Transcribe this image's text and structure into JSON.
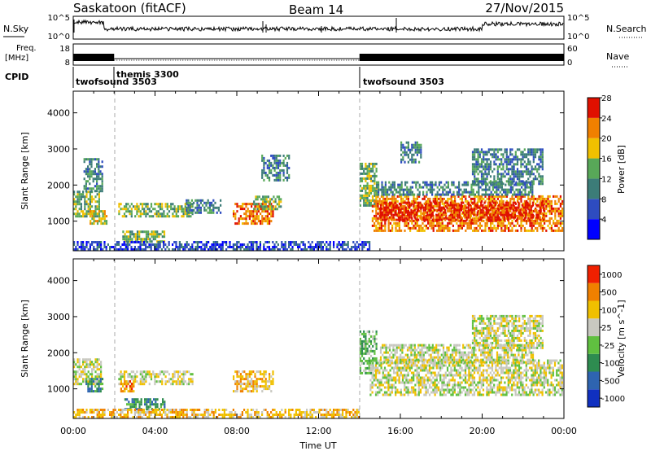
{
  "header": {
    "site": "Saskatoon (fitACF)",
    "beam": "Beam 14",
    "date": "27/Nov/2015"
  },
  "strips": {
    "nsky_label": "N.Sky",
    "nsearch_label": "N.Search",
    "nsky_ticks": [
      "10^5",
      "10^0"
    ],
    "nsearch_ticks": [
      "10^5",
      "10^0"
    ],
    "freq_label": "Freq.",
    "freq_unit": "[MHz]",
    "freq_ticks": [
      "18",
      "8"
    ],
    "nave_label": "Nave",
    "nave_ticks": [
      "60",
      "0"
    ],
    "cpid_label": "CPID"
  },
  "cpid_segments": [
    {
      "name": "twofsound 3503",
      "start_h": 0.0
    },
    {
      "name": "themis 3300",
      "start_h": 2.0
    },
    {
      "name": "twofsound 3503",
      "start_h": 14.0
    }
  ],
  "time_axis": {
    "label": "Time UT",
    "ticks": [
      "00:00",
      "04:00",
      "08:00",
      "12:00",
      "16:00",
      "20:00",
      "00:00"
    ],
    "range_h": [
      0,
      24
    ]
  },
  "chart_data": [
    {
      "type": "heatmap",
      "ylabel": "Slant Range [km]",
      "yticks": [
        1000,
        2000,
        3000,
        4000
      ],
      "ylim": [
        180,
        4600
      ],
      "colorbar_label": "Power [dB]",
      "colorbar_ticks": [
        "4",
        "8",
        "12",
        "16",
        "20",
        "24",
        "28"
      ],
      "colorbar_colors": [
        "#0000ff",
        "#2e4cc0",
        "#3c7c78",
        "#58a858",
        "#f0c000",
        "#f08000",
        "#e01000"
      ],
      "regions": [
        {
          "x0": 0.0,
          "x1": 1.3,
          "y0": 1100,
          "y1": 1800,
          "lvl": 3
        },
        {
          "x0": 0.8,
          "x1": 1.6,
          "y0": 900,
          "y1": 1300,
          "lvl": 4
        },
        {
          "x0": 0.5,
          "x1": 1.4,
          "y0": 1800,
          "y1": 2700,
          "lvl": 2
        },
        {
          "x0": 2.2,
          "x1": 5.8,
          "y0": 1100,
          "y1": 1500,
          "lvl": 3
        },
        {
          "x0": 2.4,
          "x1": 4.5,
          "y0": 400,
          "y1": 700,
          "lvl": 3
        },
        {
          "x0": 5.5,
          "x1": 7.2,
          "y0": 1200,
          "y1": 1600,
          "lvl": 2
        },
        {
          "x0": 7.8,
          "x1": 9.8,
          "y0": 900,
          "y1": 1500,
          "lvl": 5
        },
        {
          "x0": 8.8,
          "x1": 10.2,
          "y0": 1300,
          "y1": 1700,
          "lvl": 3
        },
        {
          "x0": 9.2,
          "x1": 10.6,
          "y0": 2100,
          "y1": 2800,
          "lvl": 2
        },
        {
          "x0": 14.0,
          "x1": 14.8,
          "y0": 1400,
          "y1": 2600,
          "lvl": 3
        },
        {
          "x0": 14.6,
          "x1": 23.9,
          "y0": 700,
          "y1": 1700,
          "lvl": 5
        },
        {
          "x0": 15.0,
          "x1": 23.0,
          "y0": 1000,
          "y1": 1500,
          "lvl": 6
        },
        {
          "x0": 14.8,
          "x1": 22.5,
          "y0": 1700,
          "y1": 2100,
          "lvl": 2
        },
        {
          "x0": 16.0,
          "x1": 17.0,
          "y0": 2600,
          "y1": 3200,
          "lvl": 2
        },
        {
          "x0": 19.5,
          "x1": 23.0,
          "y0": 2000,
          "y1": 3000,
          "lvl": 2
        },
        {
          "x0": 0.0,
          "x1": 14.5,
          "y0": 180,
          "y1": 450,
          "lvl": 1
        }
      ]
    },
    {
      "type": "heatmap",
      "ylabel": "Slant Range [km]",
      "yticks": [
        1000,
        2000,
        3000,
        4000
      ],
      "ylim": [
        180,
        4600
      ],
      "colorbar_label": "Velocity [m s^-1]",
      "colorbar_ticks": [
        "1000",
        "500",
        "100",
        "25",
        "-25",
        "-100",
        "-500",
        "-1000"
      ],
      "colorbar_colors": [
        "#1030c0",
        "#2e64b0",
        "#2e8c50",
        "#60c040",
        "#c8c8c0",
        "#f0c000",
        "#f08000",
        "#f02000"
      ],
      "regions": [
        {
          "x0": 0.0,
          "x1": 1.4,
          "y0": 1100,
          "y1": 1800,
          "lvl": 4
        },
        {
          "x0": 0.6,
          "x1": 1.4,
          "y0": 900,
          "y1": 1300,
          "lvl": 2
        },
        {
          "x0": 2.2,
          "x1": 5.8,
          "y0": 1100,
          "y1": 1500,
          "lvl": 4
        },
        {
          "x0": 2.3,
          "x1": 3.0,
          "y0": 900,
          "y1": 1200,
          "lvl": 6
        },
        {
          "x0": 2.5,
          "x1": 4.5,
          "y0": 400,
          "y1": 700,
          "lvl": 2
        },
        {
          "x0": 7.8,
          "x1": 9.8,
          "y0": 900,
          "y1": 1500,
          "lvl": 5
        },
        {
          "x0": 14.0,
          "x1": 14.8,
          "y0": 1400,
          "y1": 2600,
          "lvl": 3
        },
        {
          "x0": 14.5,
          "x1": 23.9,
          "y0": 800,
          "y1": 1800,
          "lvl": 4
        },
        {
          "x0": 15.0,
          "x1": 22.5,
          "y0": 1700,
          "y1": 2200,
          "lvl": 4
        },
        {
          "x0": 19.5,
          "x1": 23.0,
          "y0": 2100,
          "y1": 3000,
          "lvl": 4
        },
        {
          "x0": 0.0,
          "x1": 14.0,
          "y0": 180,
          "y1": 450,
          "lvl": 5
        }
      ]
    }
  ]
}
